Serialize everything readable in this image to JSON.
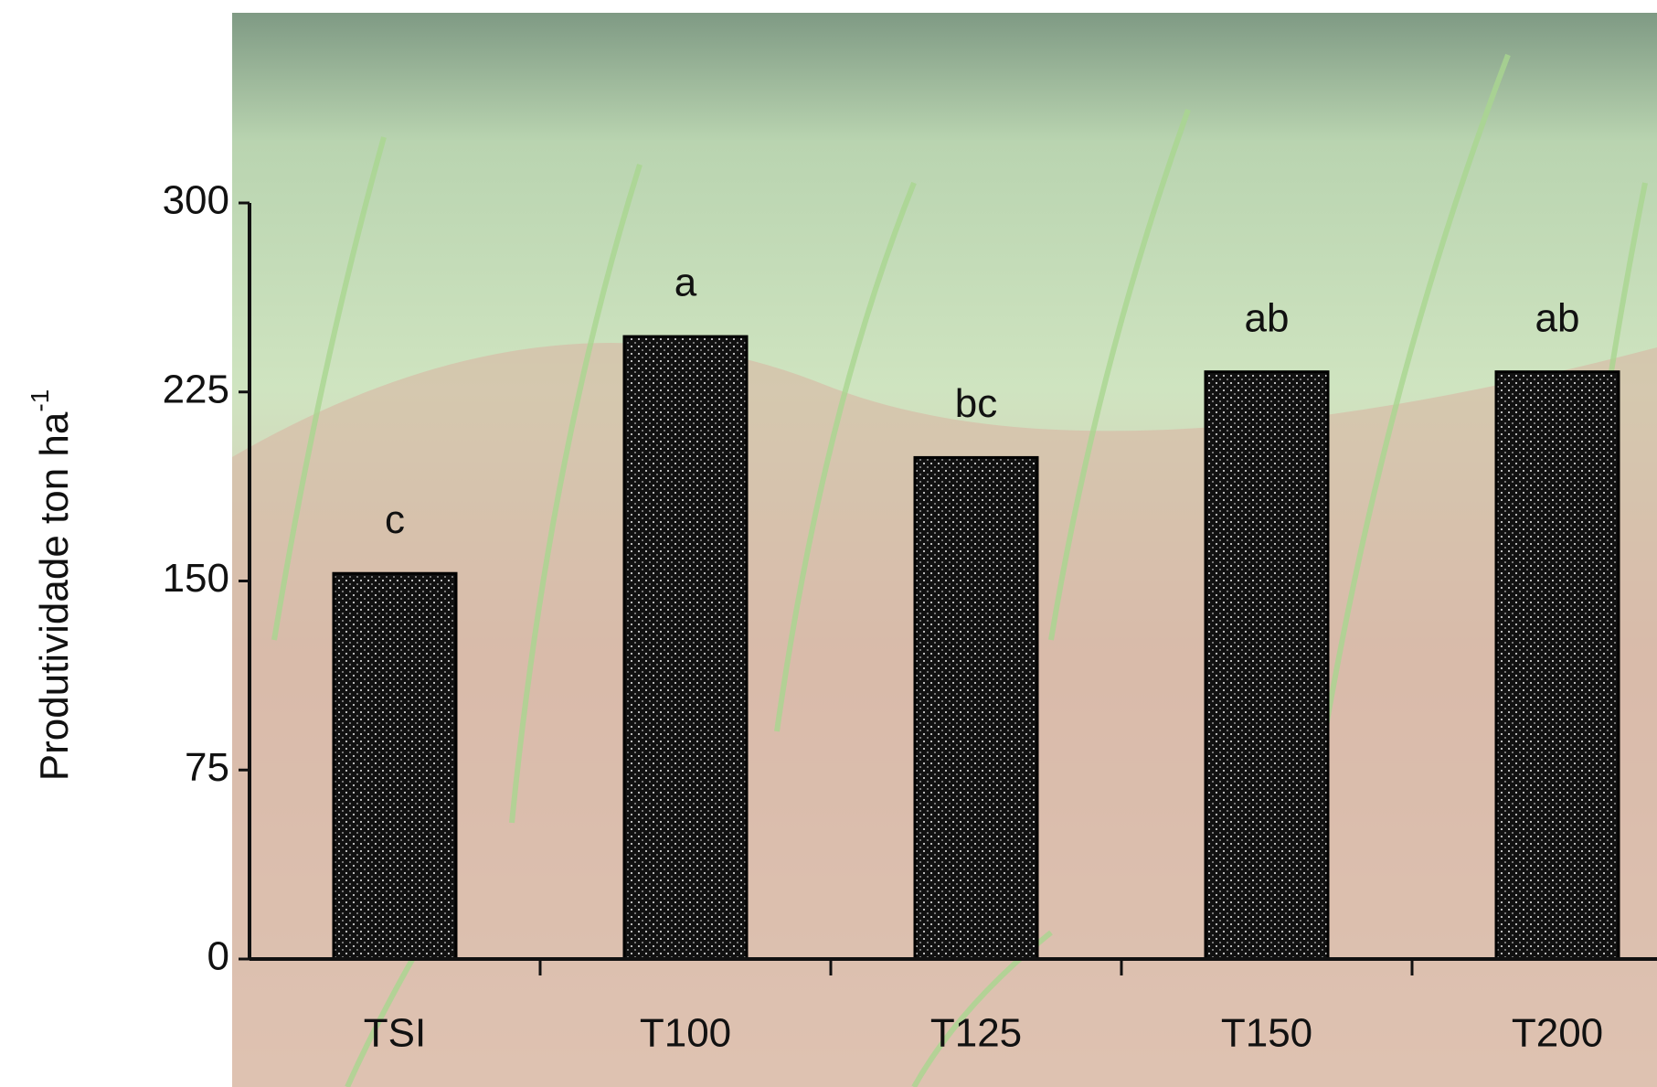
{
  "chart_data": {
    "type": "bar",
    "ylabel": "Produtividade ton ha",
    "ylabel_superscript": "-1",
    "categories": [
      "TSI",
      "T100",
      "T125",
      "T150",
      "T200"
    ],
    "values": [
      153,
      247,
      199,
      233,
      233
    ],
    "significance_letters": [
      "c",
      "a",
      "bc",
      "ab",
      "ab"
    ],
    "color": "#000000",
    "ylim": [
      0,
      300
    ],
    "yticks": [
      0,
      75,
      150,
      225,
      300
    ]
  }
}
